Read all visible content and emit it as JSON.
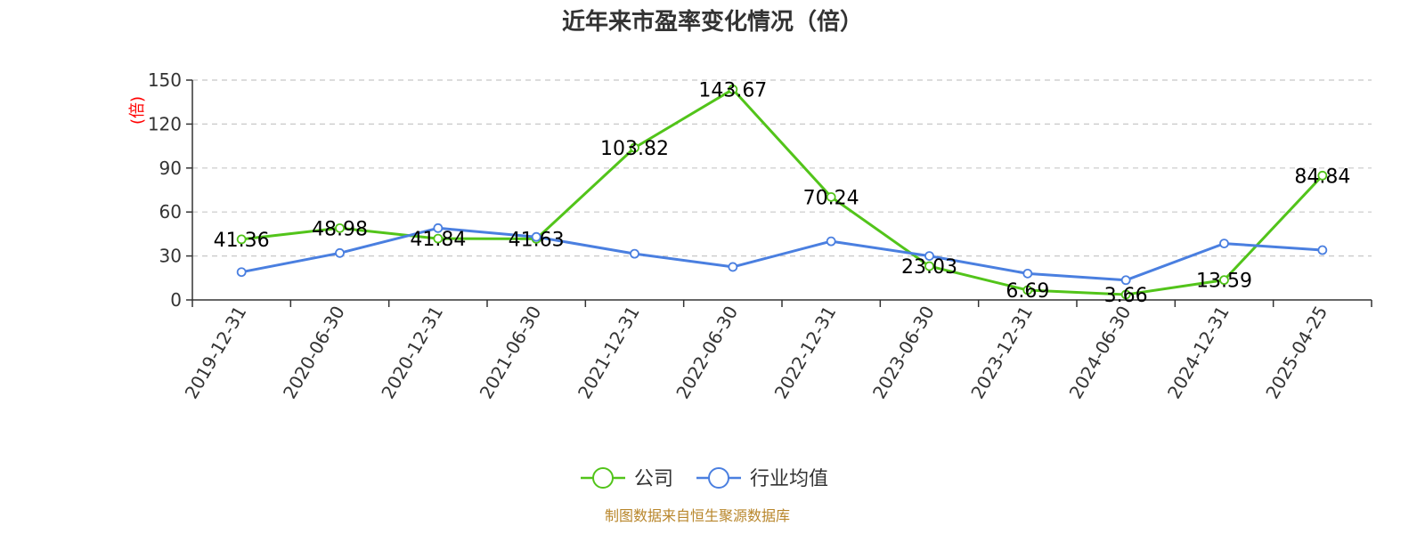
{
  "colors": {
    "company": "#52c41a",
    "industry": "#4a7fe0",
    "grid": "#c8c8c8",
    "axis": "#333333",
    "ylabel": "#ff0000",
    "source": "#b8862b"
  },
  "chart_data": {
    "type": "line",
    "title": "近年来市盈率变化情况（倍）",
    "ylabel": "(倍)",
    "xlabel": "",
    "ylim": [
      0,
      150
    ],
    "yticks": [
      0,
      30,
      60,
      90,
      120,
      150
    ],
    "grid": "horizontal dashed",
    "legend_position": "bottom-center",
    "categories": [
      "2019-12-31",
      "2020-06-30",
      "2020-12-31",
      "2021-06-30",
      "2021-12-31",
      "2022-06-30",
      "2022-12-31",
      "2023-06-30",
      "2023-12-31",
      "2024-06-30",
      "2024-12-31",
      "2025-04-25"
    ],
    "series": [
      {
        "name": "公司",
        "color": "#52c41a",
        "values": [
          41.36,
          48.98,
          41.84,
          41.63,
          103.82,
          143.67,
          70.24,
          23.03,
          6.69,
          3.66,
          13.59,
          84.84
        ],
        "labels": [
          "41.36",
          "48.98",
          "41.84",
          "41.63",
          "103.82",
          "143.67",
          "70.24",
          "23.03",
          "6.69",
          "3.66",
          "13.59",
          "84.84"
        ]
      },
      {
        "name": "行业均值",
        "color": "#4a7fe0",
        "values": [
          19,
          32,
          49,
          43,
          31.5,
          22.5,
          40,
          30,
          18,
          13.5,
          38.5,
          34
        ]
      }
    ]
  },
  "source_note": "制图数据来自恒生聚源数据库"
}
